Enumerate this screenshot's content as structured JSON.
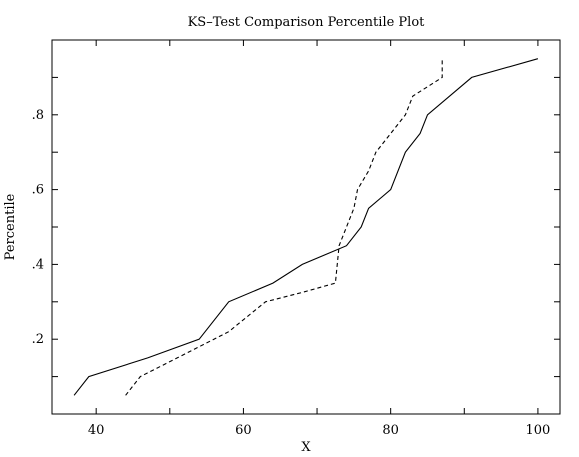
{
  "chart_data": {
    "type": "line",
    "title": "KS–Test Comparison Percentile Plot",
    "xlabel": "X",
    "ylabel": "Percentile",
    "xlim": [
      34,
      103
    ],
    "ylim": [
      0.0,
      1.0
    ],
    "x_ticks": [
      40,
      60,
      80,
      100
    ],
    "x_tick_labels": [
      "40",
      "60",
      "80",
      "100"
    ],
    "x_minor_ticks": [
      40,
      50,
      60,
      70,
      80,
      90,
      100
    ],
    "y_ticks": [
      0.2,
      0.4,
      0.6,
      0.8
    ],
    "y_tick_labels": [
      ".2",
      ".4",
      ".6",
      ".8"
    ],
    "y_minor_ticks": [
      0.1,
      0.2,
      0.3,
      0.4,
      0.5,
      0.6,
      0.7,
      0.8,
      0.9
    ],
    "grid": false,
    "legend": "none",
    "series": [
      {
        "style": "solid",
        "color": "#000000",
        "x": [
          37,
          39,
          47,
          54,
          58,
          64,
          68,
          74,
          76,
          77,
          80,
          82,
          84,
          85,
          91,
          100
        ],
        "y": [
          0.05,
          0.1,
          0.15,
          0.2,
          0.3,
          0.35,
          0.4,
          0.45,
          0.5,
          0.55,
          0.6,
          0.7,
          0.75,
          0.8,
          0.9,
          0.95
        ]
      },
      {
        "style": "dashed",
        "color": "#000000",
        "x": [
          44,
          46,
          51,
          58,
          63,
          68,
          72.5,
          73,
          74,
          75,
          75.5,
          77,
          78,
          80,
          82,
          83,
          85,
          87,
          87
        ],
        "y": [
          0.05,
          0.1,
          0.15,
          0.22,
          0.3,
          0.325,
          0.35,
          0.45,
          0.5,
          0.55,
          0.6,
          0.65,
          0.7,
          0.75,
          0.8,
          0.85,
          0.875,
          0.9,
          0.95
        ]
      }
    ]
  }
}
